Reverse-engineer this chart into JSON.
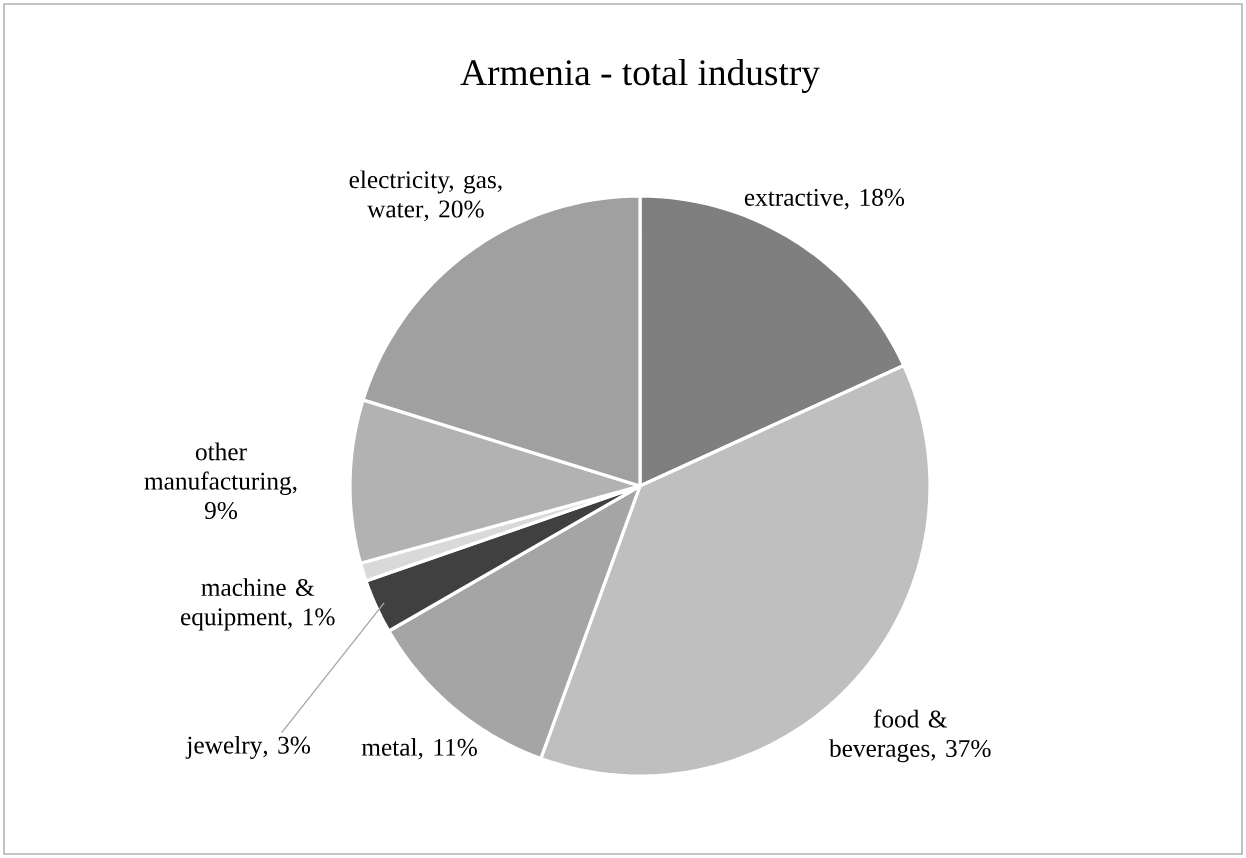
{
  "chart_data": {
    "type": "pie",
    "title": "Armenia - total industry",
    "categories": [
      "extractive",
      "food & beverages",
      "metal",
      "jewelry",
      "machine & equipment",
      "other manufacturing",
      "electricity, gas, water"
    ],
    "values": [
      18,
      37,
      11,
      3,
      1,
      9,
      20
    ],
    "colors": [
      "#7f7f7f",
      "#bfbfbf",
      "#a5a5a5",
      "#404040",
      "#d9d9d9",
      "#b2b2b2",
      "#a0a0a0"
    ],
    "value_labels": [
      ", 18%",
      ", 37%",
      ", 11%",
      ", 3%",
      ", 1%",
      ", 9%",
      ", 20%"
    ]
  }
}
